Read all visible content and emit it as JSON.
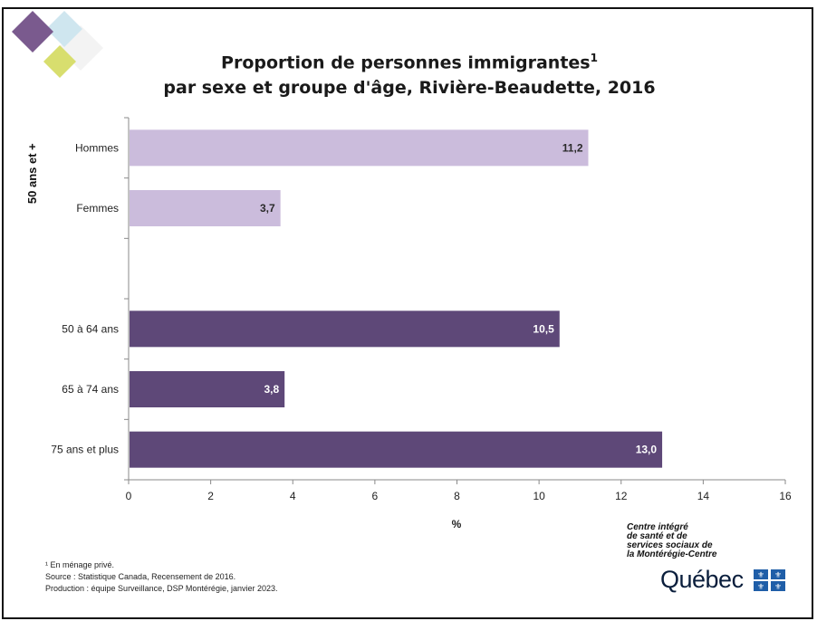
{
  "title_line1": "Proportion de personnes immigrantes",
  "title_sup": "1",
  "title_line2": "par sexe et groupe d'âge, Rivière-Beaudette, 2016",
  "chart_data": {
    "type": "bar",
    "orientation": "horizontal",
    "group_label": "50 ans et +",
    "categories": [
      "Hommes",
      "Femmes",
      "50 à 64 ans",
      "65 à 74 ans",
      "75 ans et plus"
    ],
    "values": [
      11.2,
      3.7,
      10.5,
      3.8,
      13.0
    ],
    "data_labels": [
      "11,2",
      "3,7",
      "10,5",
      "3,8",
      "13,0"
    ],
    "xlabel": "%",
    "xlim": [
      0,
      16
    ],
    "xticks": [
      0,
      2,
      4,
      6,
      8,
      10,
      12,
      14,
      16
    ],
    "grid": false,
    "colors": {
      "sex": "#cbbcdc",
      "age": "#5e4878"
    }
  },
  "footnotes": {
    "note": "¹ En ménage privé.",
    "source": "Source : Statistique Canada, Recensement de 2016.",
    "production": "Production : équipe Surveillance, DSP Montérégie, janvier 2023."
  },
  "logo": {
    "org_line1": "Centre intégré",
    "org_line2": "de santé et de",
    "org_line3": "services sociaux de",
    "org_line4": "la Montérégie-Centre",
    "name": "Québec",
    "flag_color": "#1f5ea8"
  }
}
